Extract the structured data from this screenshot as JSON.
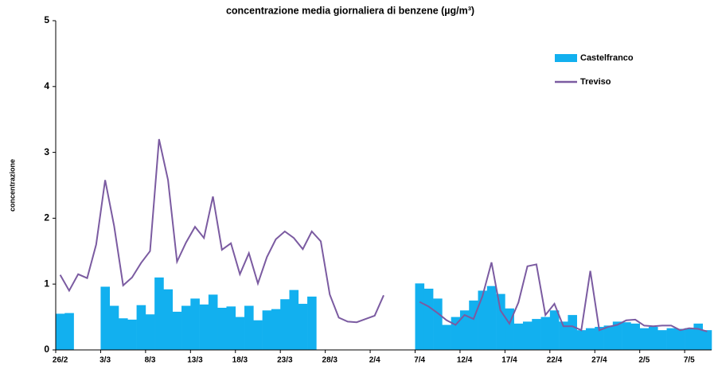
{
  "chart_data": {
    "type": "bar_line",
    "title": "concentrazione media giornaliera di benzene (µg/m³)",
    "y_label": "concentrazione",
    "categories": [
      "26/2",
      null,
      null,
      null,
      null,
      "3/3",
      null,
      null,
      null,
      null,
      "8/3",
      null,
      null,
      null,
      null,
      "13/3",
      null,
      null,
      null,
      null,
      "18/3",
      null,
      null,
      null,
      null,
      "23/3",
      null,
      null,
      null,
      null,
      "28/3",
      null,
      null,
      null,
      null,
      "2/4",
      null,
      null,
      null,
      null,
      "7/4",
      null,
      null,
      null,
      null,
      "12/4",
      null,
      null,
      null,
      null,
      "17/4",
      null,
      null,
      null,
      null,
      "22/4",
      null,
      null,
      null,
      null,
      "27/4",
      null,
      null,
      null,
      null,
      "2/5",
      null,
      null,
      null,
      null,
      "7/5",
      null,
      null
    ],
    "series": [
      {
        "name": "Castelfranco",
        "kind": "bar",
        "color": "#12b0ef",
        "values": [
          0.55,
          0.56,
          null,
          null,
          null,
          0.96,
          0.67,
          0.48,
          0.46,
          0.68,
          0.54,
          1.1,
          0.92,
          0.58,
          0.67,
          0.78,
          0.69,
          0.84,
          0.64,
          0.66,
          0.5,
          0.67,
          0.45,
          0.6,
          0.62,
          0.77,
          0.91,
          0.7,
          0.81,
          null,
          null,
          null,
          null,
          null,
          null,
          null,
          null,
          null,
          null,
          null,
          1.01,
          0.93,
          0.78,
          0.38,
          0.5,
          0.6,
          0.75,
          0.9,
          0.97,
          0.85,
          0.63,
          0.4,
          0.43,
          0.47,
          0.5,
          0.6,
          0.43,
          0.53,
          0.3,
          0.33,
          0.35,
          0.37,
          0.43,
          0.42,
          0.4,
          0.33,
          0.35,
          0.3,
          0.33,
          0.32,
          0.33,
          0.4,
          0.3
        ]
      },
      {
        "name": "Treviso",
        "kind": "line",
        "color": "#7b5ba1",
        "values": [
          1.14,
          0.9,
          1.15,
          1.09,
          1.6,
          2.58,
          1.88,
          0.98,
          1.1,
          1.32,
          1.5,
          3.2,
          2.58,
          1.34,
          1.63,
          1.87,
          1.7,
          2.33,
          1.52,
          1.62,
          1.15,
          1.47,
          1.01,
          1.41,
          1.68,
          1.8,
          1.7,
          1.53,
          1.8,
          1.65,
          0.84,
          0.49,
          0.43,
          0.42,
          0.47,
          0.52,
          0.83,
          null,
          null,
          null,
          0.73,
          0.66,
          0.56,
          0.45,
          0.38,
          0.53,
          0.47,
          0.82,
          1.33,
          0.6,
          0.4,
          0.72,
          1.27,
          1.3,
          0.53,
          0.7,
          0.36,
          0.36,
          0.3,
          1.2,
          0.3,
          0.35,
          0.38,
          0.45,
          0.46,
          0.37,
          0.36,
          0.37,
          0.37,
          0.3,
          0.33,
          0.32,
          0.28
        ]
      }
    ],
    "ylim": [
      0,
      5
    ],
    "yticks": [
      0,
      1,
      2,
      3,
      4,
      5
    ],
    "grid": false,
    "legend": "top-right"
  }
}
